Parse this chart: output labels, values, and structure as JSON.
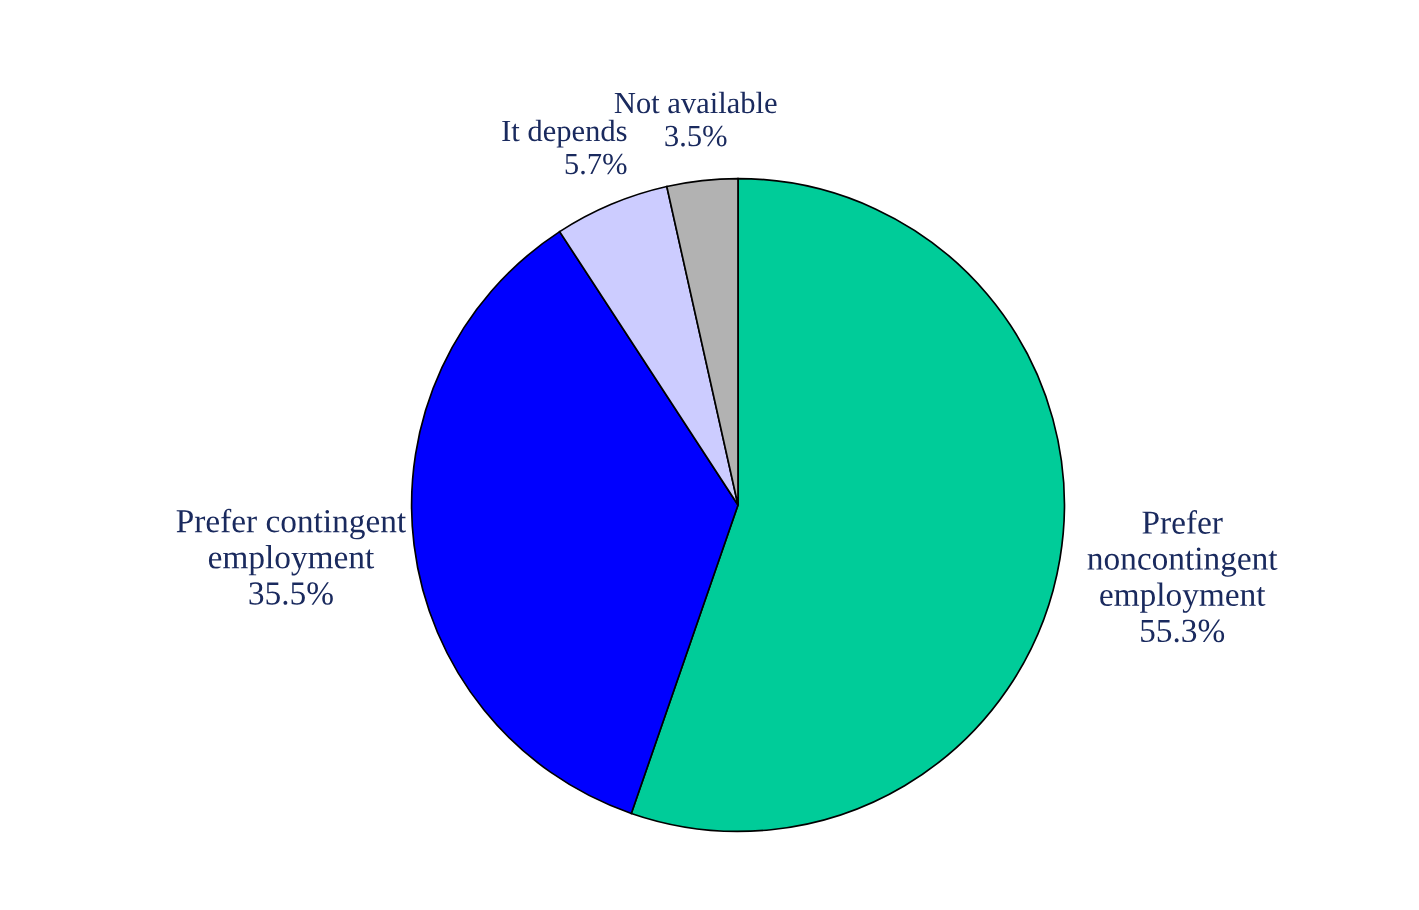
{
  "chart_data": {
    "type": "pie",
    "categories": [
      "Prefer\nnoncontingent\nemployment",
      "Prefer contingent\nemployment",
      "It depends",
      "Not available"
    ],
    "values": [
      55.3,
      35.5,
      5.7,
      3.5
    ],
    "value_labels": [
      "55.3%",
      "35.5%",
      "5.7%",
      "3.5%"
    ],
    "colors": [
      "#00cc99",
      "#0000ff",
      "#ccccff",
      "#b2b2b2"
    ]
  }
}
